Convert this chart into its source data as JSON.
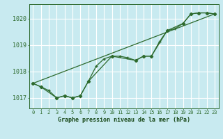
{
  "title": "Graphe pression niveau de la mer (hPa)",
  "bg_color": "#c8eaf0",
  "grid_color": "#b0d8e0",
  "line_color": "#2d6a2d",
  "ylim": [
    1016.6,
    1020.55
  ],
  "xlim": [
    -0.5,
    23.5
  ],
  "yticks": [
    1017,
    1018,
    1019,
    1020
  ],
  "xticks": [
    0,
    1,
    2,
    3,
    4,
    5,
    6,
    7,
    8,
    9,
    10,
    11,
    12,
    13,
    14,
    15,
    16,
    17,
    18,
    19,
    20,
    21,
    22,
    23
  ],
  "series1_x": [
    0,
    1,
    2,
    3,
    4,
    5,
    6,
    7,
    8,
    9,
    10,
    11,
    12,
    13,
    14,
    15,
    16,
    17,
    18,
    19,
    20,
    21,
    22,
    23
  ],
  "series1_y": [
    1017.55,
    1017.42,
    1017.28,
    1017.0,
    1017.08,
    1017.0,
    1017.08,
    1017.62,
    1018.2,
    1018.48,
    1018.58,
    1018.58,
    1018.52,
    1018.42,
    1018.58,
    1018.58,
    1019.12,
    1019.55,
    1019.62,
    1019.82,
    1020.18,
    1020.22,
    1020.22,
    1020.18
  ],
  "series2_x": [
    0,
    23
  ],
  "series2_y": [
    1017.55,
    1020.18
  ],
  "series3_x": [
    0,
    1,
    3,
    4,
    5,
    6,
    7,
    10,
    13,
    14,
    15,
    17,
    19,
    20,
    21,
    22,
    23
  ],
  "series3_y": [
    1017.55,
    1017.42,
    1017.0,
    1017.08,
    1017.0,
    1017.08,
    1017.62,
    1018.58,
    1018.42,
    1018.58,
    1018.58,
    1019.55,
    1019.82,
    1020.18,
    1020.22,
    1020.22,
    1020.18
  ]
}
